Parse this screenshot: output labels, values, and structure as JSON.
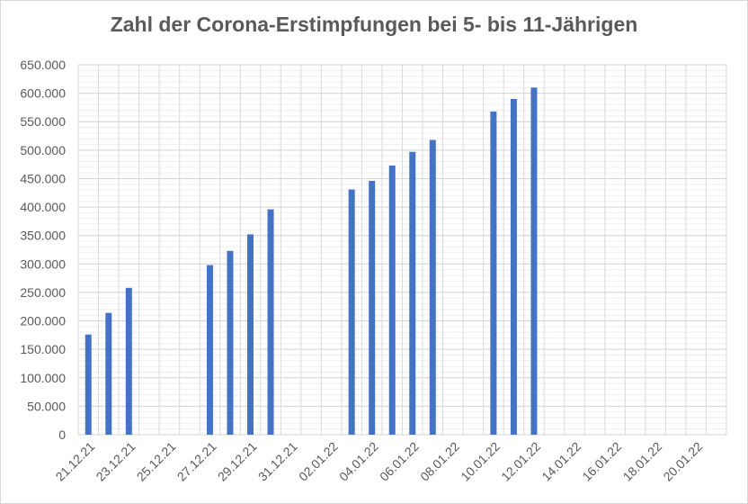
{
  "chart_data": {
    "type": "bar",
    "title": "Zahl der Corona-Erstimpfungen bei 5- bis 11-Jährigen",
    "xlabel": "",
    "ylabel": "",
    "ylim": [
      0,
      650000
    ],
    "y_ticks": [
      "0",
      "50.000",
      "100.000",
      "150.000",
      "200.000",
      "250.000",
      "300.000",
      "350.000",
      "400.000",
      "450.000",
      "500.000",
      "550.000",
      "600.000",
      "650.000"
    ],
    "x_tick_labels": [
      "21.12.21",
      "23.12.21",
      "25.12.21",
      "27.12.21",
      "29.12.21",
      "31.12.21",
      "02.01.22",
      "04.01.22",
      "06.01.22",
      "08.01.22",
      "10.01.22",
      "12.01.22",
      "14.01.22",
      "16.01.22",
      "18.01.22",
      "20.01.22"
    ],
    "categories": [
      "21.12.21",
      "22.12.21",
      "23.12.21",
      "24.12.21",
      "25.12.21",
      "26.12.21",
      "27.12.21",
      "28.12.21",
      "29.12.21",
      "30.12.21",
      "31.12.21",
      "01.01.22",
      "02.01.22",
      "03.01.22",
      "04.01.22",
      "05.01.22",
      "06.01.22",
      "07.01.22",
      "08.01.22",
      "09.01.22",
      "10.01.22",
      "11.01.22",
      "12.01.22",
      "13.01.22",
      "14.01.22",
      "15.01.22",
      "16.01.22",
      "17.01.22",
      "18.01.22",
      "19.01.22",
      "20.01.22",
      "21.01.22"
    ],
    "values": [
      176000,
      214000,
      258000,
      null,
      null,
      null,
      298000,
      323000,
      352000,
      396000,
      null,
      null,
      null,
      431000,
      446000,
      473000,
      497000,
      518000,
      null,
      null,
      568000,
      590000,
      610000,
      null,
      null,
      null,
      null,
      null,
      null,
      null,
      null,
      null
    ],
    "bar_color": "#4472c4",
    "grid": true,
    "legend": "none"
  }
}
